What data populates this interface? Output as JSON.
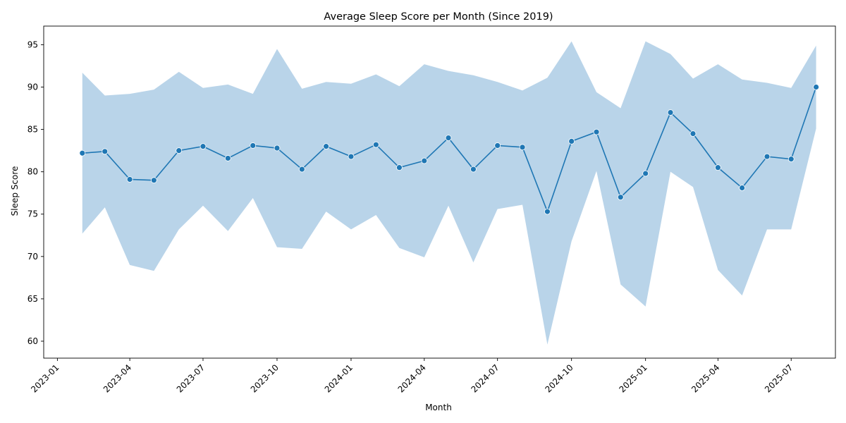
{
  "chart_data": {
    "type": "line",
    "title": "Average Sleep Score per Month (Since 2019)",
    "xlabel": "Month",
    "ylabel": "Sleep Score",
    "x_axis": {
      "type": "date",
      "range": [
        "2022-12-15",
        "2025-08-25"
      ]
    },
    "ylim": [
      58,
      97.2
    ],
    "yticks": [
      60,
      65,
      70,
      75,
      80,
      85,
      90,
      95
    ],
    "xticks": [
      "2023-01",
      "2023-04",
      "2023-07",
      "2023-10",
      "2024-01",
      "2024-04",
      "2024-07",
      "2024-10",
      "2025-01",
      "2025-04",
      "2025-07"
    ],
    "grid": false,
    "line_color": "#1f77b4",
    "band_color": "#b9d4e9",
    "x": [
      "2023-02-01",
      "2023-03-01",
      "2023-04-01",
      "2023-05-01",
      "2023-06-01",
      "2023-07-01",
      "2023-08-01",
      "2023-09-01",
      "2023-10-01",
      "2023-11-01",
      "2023-12-01",
      "2024-01-01",
      "2024-02-01",
      "2024-03-01",
      "2024-04-01",
      "2024-05-01",
      "2024-06-01",
      "2024-07-01",
      "2024-08-01",
      "2024-09-01",
      "2024-10-01",
      "2024-11-01",
      "2024-12-01",
      "2025-01-01",
      "2025-02-01",
      "2025-03-01",
      "2025-04-01",
      "2025-05-01",
      "2025-06-01",
      "2025-07-01",
      "2025-08-01"
    ],
    "series": [
      {
        "values": [
          82.2,
          82.4,
          79.1,
          79.0,
          82.5,
          83.0,
          81.6,
          83.1,
          82.8,
          80.3,
          83.0,
          81.8,
          83.2,
          80.5,
          81.3,
          84.0,
          80.3,
          83.1,
          82.9,
          75.3,
          83.6,
          84.7,
          77.0,
          79.8,
          87.0,
          84.5,
          80.5,
          78.1,
          81.8,
          81.5,
          90.0
        ],
        "upper": [
          91.7,
          89.0,
          89.2,
          89.7,
          91.8,
          89.9,
          90.3,
          89.2,
          94.5,
          89.8,
          90.6,
          90.4,
          91.5,
          90.1,
          92.7,
          91.9,
          91.4,
          90.6,
          89.6,
          91.1,
          95.4,
          89.4,
          87.5,
          95.4,
          93.9,
          91.0,
          92.7,
          90.9,
          90.5,
          89.9,
          94.9
        ],
        "lower": [
          72.7,
          75.8,
          69.0,
          68.3,
          73.2,
          76.0,
          73.0,
          76.9,
          71.1,
          70.9,
          75.3,
          73.2,
          74.9,
          71.0,
          69.9,
          76.0,
          69.3,
          75.6,
          76.1,
          59.6,
          71.8,
          80.1,
          66.7,
          64.1,
          80.0,
          78.2,
          68.4,
          65.4,
          73.2,
          73.2,
          85.1
        ]
      }
    ]
  }
}
